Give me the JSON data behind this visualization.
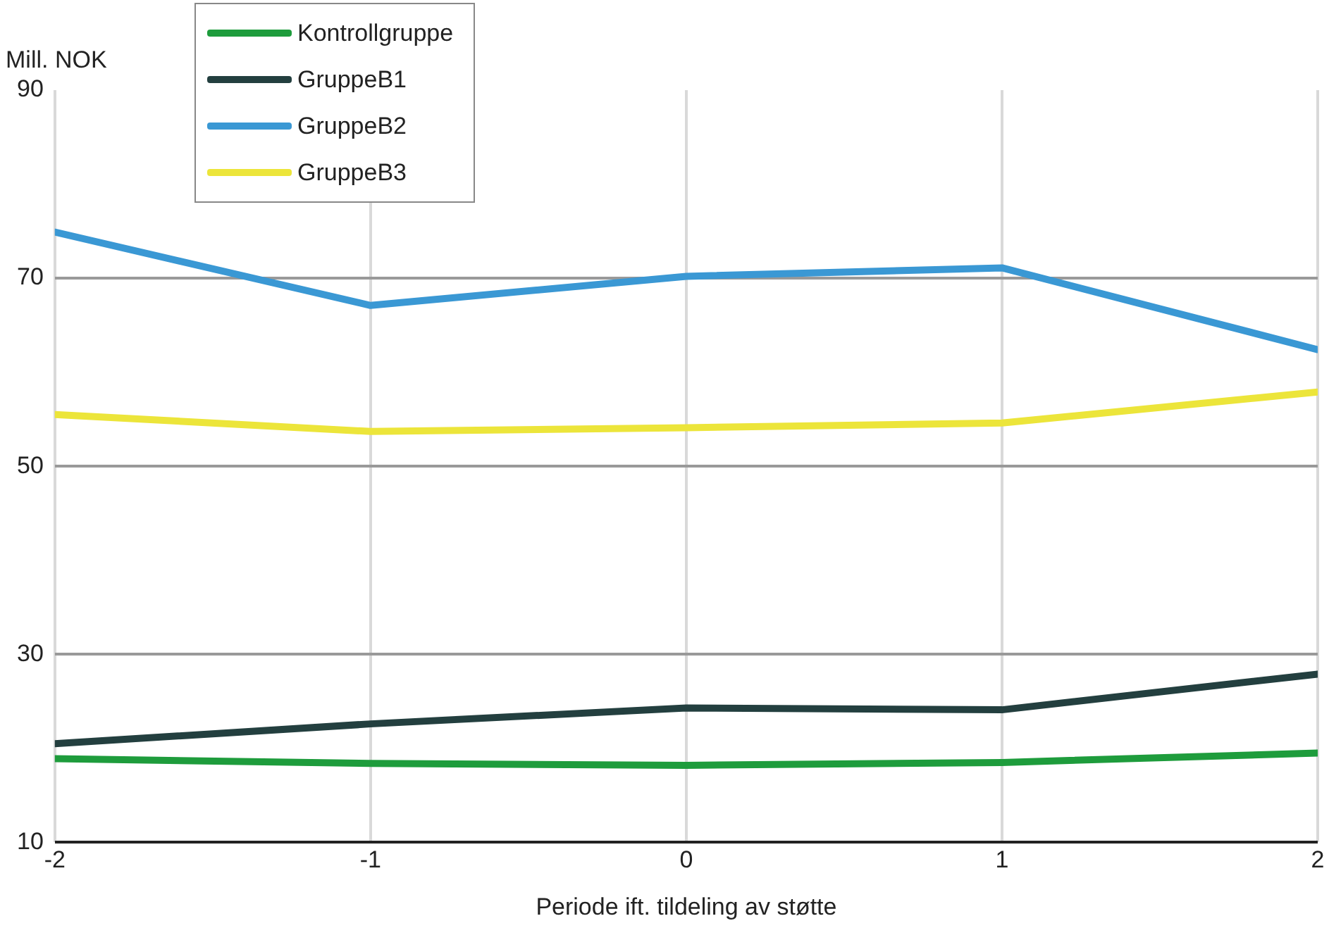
{
  "chart_data": {
    "type": "line",
    "ylabel": "Mill. NOK",
    "xlabel": "Periode ift. tildeling av støtte",
    "x": [
      -2,
      -1,
      0,
      1,
      2
    ],
    "xlim": [
      -2,
      2
    ],
    "xticks": [
      -2,
      -1,
      0,
      1,
      2
    ],
    "ylim": [
      10,
      90
    ],
    "yticks": [
      10,
      30,
      50,
      70,
      90
    ],
    "grid": true,
    "legend": "top left",
    "marker": "none",
    "line_style": "solid",
    "series": [
      {
        "name": "Kontrollgruppe",
        "color": "#1e9c3c",
        "values": [
          18.9,
          18.4,
          18.2,
          18.5,
          19.5
        ]
      },
      {
        "name": "GruppeB1",
        "color": "#233f3f",
        "values": [
          20.5,
          22.6,
          24.3,
          24.1,
          27.9
        ]
      },
      {
        "name": "GruppeB2",
        "color": "#3a98d4",
        "values": [
          74.9,
          67.1,
          70.2,
          71.1,
          62.4
        ]
      },
      {
        "name": "GruppeB3",
        "color": "#ece53a",
        "values": [
          55.5,
          53.7,
          54.1,
          54.6,
          57.9
        ]
      }
    ]
  }
}
